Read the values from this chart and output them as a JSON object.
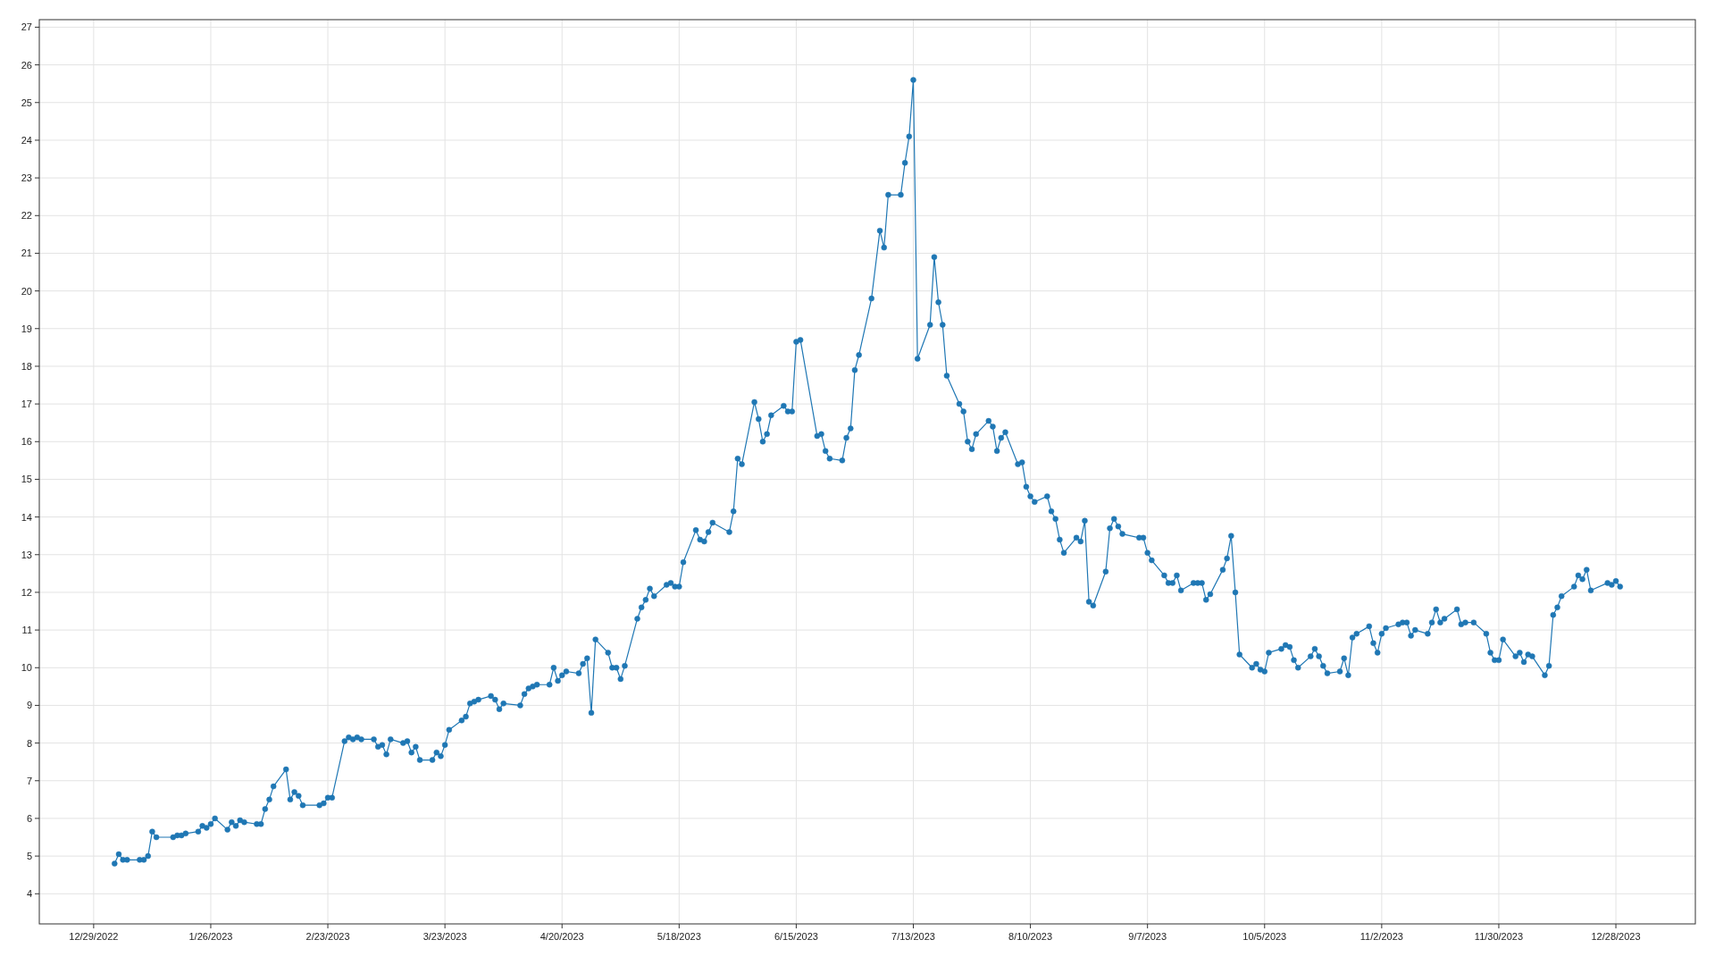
{
  "chart_data": {
    "type": "line",
    "xlim": [
      "2022-12-16",
      "2024-01-16"
    ],
    "ylim": [
      3.2,
      27.2
    ],
    "xticks": [
      {
        "value": "2022-12-29",
        "label": "12/29/2022"
      },
      {
        "value": "2023-01-26",
        "label": "1/26/2023"
      },
      {
        "value": "2023-02-23",
        "label": "2/23/2023"
      },
      {
        "value": "2023-03-23",
        "label": "3/23/2023"
      },
      {
        "value": "2023-04-20",
        "label": "4/20/2023"
      },
      {
        "value": "2023-05-18",
        "label": "5/18/2023"
      },
      {
        "value": "2023-06-15",
        "label": "6/15/2023"
      },
      {
        "value": "2023-07-13",
        "label": "7/13/2023"
      },
      {
        "value": "2023-08-10",
        "label": "8/10/2023"
      },
      {
        "value": "2023-09-07",
        "label": "9/7/2023"
      },
      {
        "value": "2023-10-05",
        "label": "10/5/2023"
      },
      {
        "value": "2023-11-02",
        "label": "11/2/2023"
      },
      {
        "value": "2023-11-30",
        "label": "11/30/2023"
      },
      {
        "value": "2023-12-28",
        "label": "12/28/2023"
      }
    ],
    "yticks": [
      4,
      5,
      6,
      7,
      8,
      9,
      10,
      11,
      12,
      13,
      14,
      15,
      16,
      17,
      18,
      19,
      20,
      21,
      22,
      23,
      24,
      25,
      26,
      27
    ],
    "grid": true,
    "marker": "circle",
    "line_style": "solid",
    "series": [
      {
        "color": "#1f77b4",
        "x": [
          "2023-01-03",
          "2023-01-04",
          "2023-01-05",
          "2023-01-06",
          "2023-01-09",
          "2023-01-10",
          "2023-01-11",
          "2023-01-12",
          "2023-01-13",
          "2023-01-17",
          "2023-01-18",
          "2023-01-19",
          "2023-01-20",
          "2023-01-23",
          "2023-01-24",
          "2023-01-25",
          "2023-01-26",
          "2023-01-27",
          "2023-01-30",
          "2023-01-31",
          "2023-02-01",
          "2023-02-02",
          "2023-02-03",
          "2023-02-06",
          "2023-02-07",
          "2023-02-08",
          "2023-02-09",
          "2023-02-10",
          "2023-02-13",
          "2023-02-14",
          "2023-02-15",
          "2023-02-16",
          "2023-02-17",
          "2023-02-21",
          "2023-02-22",
          "2023-02-23",
          "2023-02-24",
          "2023-02-27",
          "2023-02-28",
          "2023-03-01",
          "2023-03-02",
          "2023-03-03",
          "2023-03-06",
          "2023-03-07",
          "2023-03-08",
          "2023-03-09",
          "2023-03-10",
          "2023-03-13",
          "2023-03-14",
          "2023-03-15",
          "2023-03-16",
          "2023-03-17",
          "2023-03-20",
          "2023-03-21",
          "2023-03-22",
          "2023-03-23",
          "2023-03-24",
          "2023-03-27",
          "2023-03-28",
          "2023-03-29",
          "2023-03-30",
          "2023-03-31",
          "2023-04-03",
          "2023-04-04",
          "2023-04-05",
          "2023-04-06",
          "2023-04-10",
          "2023-04-11",
          "2023-04-12",
          "2023-04-13",
          "2023-04-14",
          "2023-04-17",
          "2023-04-18",
          "2023-04-19",
          "2023-04-20",
          "2023-04-21",
          "2023-04-24",
          "2023-04-25",
          "2023-04-26",
          "2023-04-27",
          "2023-04-28",
          "2023-05-01",
          "2023-05-02",
          "2023-05-03",
          "2023-05-04",
          "2023-05-05",
          "2023-05-08",
          "2023-05-09",
          "2023-05-10",
          "2023-05-11",
          "2023-05-12",
          "2023-05-15",
          "2023-05-16",
          "2023-05-17",
          "2023-05-18",
          "2023-05-19",
          "2023-05-22",
          "2023-05-23",
          "2023-05-24",
          "2023-05-25",
          "2023-05-26",
          "2023-05-30",
          "2023-05-31",
          "2023-06-01",
          "2023-06-02",
          "2023-06-05",
          "2023-06-06",
          "2023-06-07",
          "2023-06-08",
          "2023-06-09",
          "2023-06-12",
          "2023-06-13",
          "2023-06-14",
          "2023-06-15",
          "2023-06-16",
          "2023-06-20",
          "2023-06-21",
          "2023-06-22",
          "2023-06-23",
          "2023-06-26",
          "2023-06-27",
          "2023-06-28",
          "2023-06-29",
          "2023-06-30",
          "2023-07-03",
          "2023-07-05",
          "2023-07-06",
          "2023-07-07",
          "2023-07-10",
          "2023-07-11",
          "2023-07-12",
          "2023-07-13",
          "2023-07-14",
          "2023-07-17",
          "2023-07-18",
          "2023-07-19",
          "2023-07-20",
          "2023-07-21",
          "2023-07-24",
          "2023-07-25",
          "2023-07-26",
          "2023-07-27",
          "2023-07-28",
          "2023-07-31",
          "2023-08-01",
          "2023-08-02",
          "2023-08-03",
          "2023-08-04",
          "2023-08-07",
          "2023-08-08",
          "2023-08-09",
          "2023-08-10",
          "2023-08-11",
          "2023-08-14",
          "2023-08-15",
          "2023-08-16",
          "2023-08-17",
          "2023-08-18",
          "2023-08-21",
          "2023-08-22",
          "2023-08-23",
          "2023-08-24",
          "2023-08-25",
          "2023-08-28",
          "2023-08-29",
          "2023-08-30",
          "2023-08-31",
          "2023-09-01",
          "2023-09-05",
          "2023-09-06",
          "2023-09-07",
          "2023-09-08",
          "2023-09-11",
          "2023-09-12",
          "2023-09-13",
          "2023-09-14",
          "2023-09-15",
          "2023-09-18",
          "2023-09-19",
          "2023-09-20",
          "2023-09-21",
          "2023-09-22",
          "2023-09-25",
          "2023-09-26",
          "2023-09-27",
          "2023-09-28",
          "2023-09-29",
          "2023-10-02",
          "2023-10-03",
          "2023-10-04",
          "2023-10-05",
          "2023-10-06",
          "2023-10-09",
          "2023-10-10",
          "2023-10-11",
          "2023-10-12",
          "2023-10-13",
          "2023-10-16",
          "2023-10-17",
          "2023-10-18",
          "2023-10-19",
          "2023-10-20",
          "2023-10-23",
          "2023-10-24",
          "2023-10-25",
          "2023-10-26",
          "2023-10-27",
          "2023-10-30",
          "2023-10-31",
          "2023-11-01",
          "2023-11-02",
          "2023-11-03",
          "2023-11-06",
          "2023-11-07",
          "2023-11-08",
          "2023-11-09",
          "2023-11-10",
          "2023-11-13",
          "2023-11-14",
          "2023-11-15",
          "2023-11-16",
          "2023-11-17",
          "2023-11-20",
          "2023-11-21",
          "2023-11-22",
          "2023-11-24",
          "2023-11-27",
          "2023-11-28",
          "2023-11-29",
          "2023-11-30",
          "2023-12-01",
          "2023-12-04",
          "2023-12-05",
          "2023-12-06",
          "2023-12-07",
          "2023-12-08",
          "2023-12-11",
          "2023-12-12",
          "2023-12-13",
          "2023-12-14",
          "2023-12-15",
          "2023-12-18",
          "2023-12-19",
          "2023-12-20",
          "2023-12-21",
          "2023-12-22",
          "2023-12-26",
          "2023-12-27",
          "2023-12-28",
          "2023-12-29"
        ],
        "values": [
          4.8,
          5.05,
          4.9,
          4.9,
          4.9,
          4.9,
          5.0,
          5.65,
          5.5,
          5.5,
          5.55,
          5.55,
          5.6,
          5.65,
          5.8,
          5.75,
          5.85,
          6.0,
          5.7,
          5.9,
          5.8,
          5.95,
          5.9,
          5.85,
          5.85,
          6.25,
          6.5,
          6.85,
          7.3,
          6.5,
          6.7,
          6.6,
          6.35,
          6.35,
          6.4,
          6.55,
          6.55,
          8.05,
          8.15,
          8.1,
          8.15,
          8.1,
          8.1,
          7.9,
          7.95,
          7.7,
          8.1,
          8.0,
          8.05,
          7.75,
          7.9,
          7.55,
          7.55,
          7.75,
          7.65,
          7.95,
          8.35,
          8.6,
          8.7,
          9.05,
          9.1,
          9.15,
          9.25,
          9.15,
          8.9,
          9.05,
          9.0,
          9.3,
          9.45,
          9.5,
          9.55,
          9.55,
          10.0,
          9.65,
          9.8,
          9.9,
          9.85,
          10.1,
          10.25,
          8.8,
          10.75,
          10.4,
          10.0,
          10.0,
          9.7,
          10.05,
          11.3,
          11.6,
          11.8,
          12.1,
          11.9,
          12.2,
          12.25,
          12.15,
          12.15,
          12.8,
          13.65,
          13.4,
          13.35,
          13.6,
          13.85,
          13.6,
          14.15,
          15.55,
          15.4,
          17.05,
          16.6,
          16.0,
          16.2,
          16.7,
          16.95,
          16.8,
          16.8,
          18.65,
          18.7,
          16.15,
          16.2,
          15.75,
          15.55,
          15.5,
          16.1,
          16.35,
          17.9,
          18.3,
          19.8,
          21.6,
          21.15,
          22.55,
          22.55,
          23.4,
          24.1,
          25.6,
          18.2,
          19.1,
          20.9,
          19.7,
          19.1,
          17.75,
          17.0,
          16.8,
          16.0,
          15.8,
          16.2,
          16.55,
          16.4,
          15.75,
          16.1,
          16.25,
          15.4,
          15.45,
          14.8,
          14.55,
          14.4,
          14.55,
          14.15,
          13.95,
          13.4,
          13.05,
          13.45,
          13.35,
          13.9,
          11.75,
          11.65,
          12.55,
          13.7,
          13.95,
          13.75,
          13.55,
          13.45,
          13.45,
          13.05,
          12.85,
          12.45,
          12.25,
          12.25,
          12.45,
          12.05,
          12.25,
          12.25,
          12.25,
          11.8,
          11.95,
          12.6,
          12.9,
          13.5,
          12.0,
          10.35,
          10.0,
          10.1,
          9.95,
          9.9,
          10.4,
          10.5,
          10.6,
          10.55,
          10.2,
          10.0,
          10.3,
          10.5,
          10.3,
          10.05,
          9.85,
          9.9,
          10.25,
          9.8,
          10.8,
          10.9,
          11.1,
          10.65,
          10.4,
          10.9,
          11.05,
          11.15,
          11.2,
          11.2,
          10.85,
          11.0,
          10.9,
          11.2,
          11.55,
          11.2,
          11.3,
          11.55,
          11.15,
          11.2,
          11.2,
          10.9,
          10.4,
          10.2,
          10.2,
          10.75,
          10.3,
          10.4,
          10.15,
          10.35,
          10.3,
          9.8,
          10.05,
          11.4,
          11.6,
          11.9,
          12.15,
          12.45,
          12.35,
          12.6,
          12.05,
          12.25,
          12.2,
          12.3,
          12.15
        ]
      }
    ]
  }
}
